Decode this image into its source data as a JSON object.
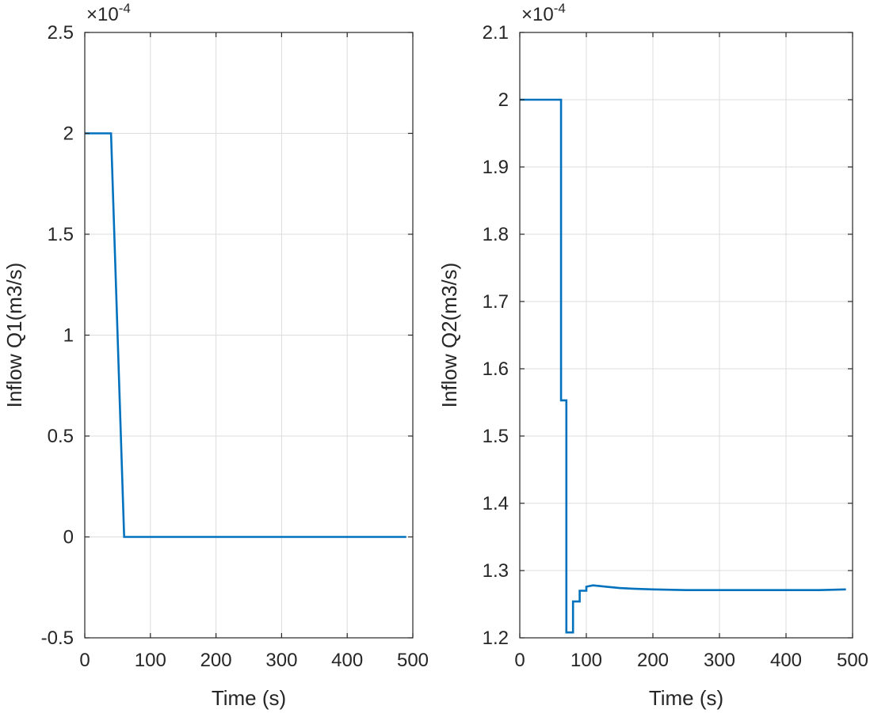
{
  "chart_data": [
    {
      "type": "line",
      "xlabel": "Time (s)",
      "ylabel": "Inflow Q1(m3/s)",
      "exponent_base": "×10",
      "exponent_power": "-4",
      "xlim": [
        0,
        500
      ],
      "ylim": [
        -0.5,
        2.5
      ],
      "grid": true,
      "x_ticks": [
        "0",
        "100",
        "200",
        "300",
        "400",
        "500"
      ],
      "y_ticks": [
        "-0.5",
        "0",
        "0.5",
        "1",
        "1.5",
        "2",
        "2.5"
      ],
      "series": [
        {
          "name": "Q1",
          "color": "#0072bd",
          "x": [
            0,
            40,
            60,
            490
          ],
          "y": [
            2.0,
            2.0,
            0.0,
            0.0
          ]
        }
      ]
    },
    {
      "type": "line",
      "xlabel": "Time (s)",
      "ylabel": "Inflow Q2(m3/s)",
      "exponent_base": "×10",
      "exponent_power": "-4",
      "xlim": [
        0,
        500
      ],
      "ylim": [
        1.2,
        2.1
      ],
      "grid": true,
      "x_ticks": [
        "0",
        "100",
        "200",
        "300",
        "400",
        "500"
      ],
      "y_ticks": [
        "1.2",
        "1.3",
        "1.4",
        "1.5",
        "1.6",
        "1.7",
        "1.8",
        "1.9",
        "2",
        "2.1"
      ],
      "series": [
        {
          "name": "Q2",
          "color": "#0072bd",
          "x": [
            0,
            62,
            62,
            70,
            70,
            80,
            80,
            90,
            90,
            100,
            100,
            110,
            120,
            130,
            150,
            170,
            200,
            250,
            300,
            350,
            400,
            450,
            490
          ],
          "y": [
            2.0,
            2.0,
            1.553,
            1.553,
            1.208,
            1.208,
            1.254,
            1.254,
            1.27,
            1.27,
            1.276,
            1.278,
            1.277,
            1.276,
            1.274,
            1.273,
            1.272,
            1.271,
            1.271,
            1.271,
            1.271,
            1.271,
            1.272
          ]
        }
      ]
    }
  ]
}
